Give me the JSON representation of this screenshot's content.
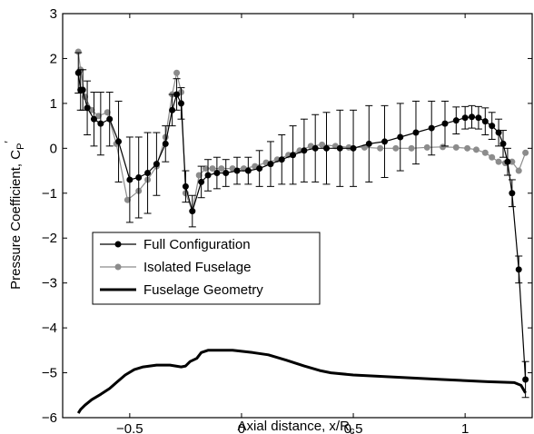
{
  "chart_data": {
    "type": "line",
    "xlabel": "Axial distance, x/R",
    "xlabel_sub": "c",
    "ylabel": "Pressure Coefficient, C",
    "ylabel_sub": "P",
    "ylabel_sup": "′",
    "xlim": [
      -0.8,
      1.3
    ],
    "ylim": [
      -6,
      3
    ],
    "xticks": [
      -0.5,
      0,
      0.5,
      1
    ],
    "xtick_labels": [
      "−0.5",
      "0",
      "0.5",
      "1"
    ],
    "yticks": [
      -6,
      -5,
      -4,
      -3,
      -2,
      -1,
      0,
      1,
      2,
      3
    ],
    "ytick_labels": [
      "−6",
      "−5",
      "−4",
      "−3",
      "−2",
      "−1",
      "0",
      "1",
      "2",
      "3"
    ],
    "grid": false,
    "legend_position": "lower-left",
    "series": [
      {
        "name": "Full Configuration",
        "color": "#000000",
        "marker": "circle",
        "points": [
          [
            -0.73,
            1.68
          ],
          [
            -0.72,
            1.3
          ],
          [
            -0.71,
            1.3
          ],
          [
            -0.69,
            0.9
          ],
          [
            -0.66,
            0.65
          ],
          [
            -0.63,
            0.55
          ],
          [
            -0.59,
            0.65
          ],
          [
            -0.55,
            0.15
          ],
          [
            -0.5,
            -0.7
          ],
          [
            -0.46,
            -0.65
          ],
          [
            -0.42,
            -0.55
          ],
          [
            -0.38,
            -0.35
          ],
          [
            -0.34,
            0.1
          ],
          [
            -0.31,
            0.85
          ],
          [
            -0.29,
            1.2
          ],
          [
            -0.27,
            1.0
          ],
          [
            -0.25,
            -0.85
          ],
          [
            -0.22,
            -1.4
          ],
          [
            -0.18,
            -0.75
          ],
          [
            -0.15,
            -0.6
          ],
          [
            -0.11,
            -0.55
          ],
          [
            -0.07,
            -0.55
          ],
          [
            -0.02,
            -0.5
          ],
          [
            0.03,
            -0.5
          ],
          [
            0.08,
            -0.45
          ],
          [
            0.13,
            -0.35
          ],
          [
            0.18,
            -0.25
          ],
          [
            0.23,
            -0.15
          ],
          [
            0.28,
            -0.05
          ],
          [
            0.33,
            0.0
          ],
          [
            0.38,
            0.0
          ],
          [
            0.44,
            0.0
          ],
          [
            0.5,
            0.0
          ],
          [
            0.57,
            0.1
          ],
          [
            0.64,
            0.15
          ],
          [
            0.71,
            0.25
          ],
          [
            0.78,
            0.35
          ],
          [
            0.85,
            0.45
          ],
          [
            0.91,
            0.55
          ],
          [
            0.96,
            0.62
          ],
          [
            1.0,
            0.68
          ],
          [
            1.03,
            0.7
          ],
          [
            1.06,
            0.68
          ],
          [
            1.09,
            0.6
          ],
          [
            1.12,
            0.5
          ],
          [
            1.15,
            0.35
          ],
          [
            1.17,
            0.1
          ],
          [
            1.19,
            -0.3
          ],
          [
            1.21,
            -1.0
          ],
          [
            1.24,
            -2.7
          ],
          [
            1.27,
            -5.15
          ]
        ],
        "errors": [
          0.45,
          0.45,
          0.45,
          0.6,
          0.6,
          0.7,
          0.6,
          0.9,
          0.95,
          0.9,
          0.9,
          0.7,
          0.4,
          0.35,
          0.35,
          0.35,
          0.35,
          0.35,
          0.35,
          0.35,
          0.35,
          0.3,
          0.3,
          0.3,
          0.4,
          0.5,
          0.55,
          0.65,
          0.7,
          0.75,
          0.8,
          0.85,
          0.85,
          0.85,
          0.8,
          0.75,
          0.7,
          0.6,
          0.5,
          0.3,
          0.25,
          0.25,
          0.25,
          0.3,
          0.3,
          0.3,
          0.3,
          0.3,
          0.3,
          0.3,
          0.4
        ]
      },
      {
        "name": "Isolated Fuselage",
        "color": "#8c8c8c",
        "marker": "circle",
        "points": [
          [
            -0.73,
            2.15
          ],
          [
            -0.72,
            1.75
          ],
          [
            -0.7,
            1.15
          ],
          [
            -0.67,
            0.85
          ],
          [
            -0.64,
            0.72
          ],
          [
            -0.6,
            0.8
          ],
          [
            -0.56,
            0.1
          ],
          [
            -0.51,
            -1.15
          ],
          [
            -0.46,
            -0.95
          ],
          [
            -0.42,
            -0.7
          ],
          [
            -0.38,
            -0.4
          ],
          [
            -0.34,
            0.25
          ],
          [
            -0.31,
            1.2
          ],
          [
            -0.29,
            1.68
          ],
          [
            -0.27,
            1.25
          ],
          [
            -0.25,
            -1.0
          ],
          [
            -0.22,
            -1.4
          ],
          [
            -0.19,
            -0.6
          ],
          [
            -0.16,
            -0.45
          ],
          [
            -0.13,
            -0.45
          ],
          [
            -0.09,
            -0.45
          ],
          [
            -0.04,
            -0.45
          ],
          [
            0.01,
            -0.45
          ],
          [
            0.06,
            -0.4
          ],
          [
            0.11,
            -0.32
          ],
          [
            0.16,
            -0.25
          ],
          [
            0.21,
            -0.15
          ],
          [
            0.26,
            -0.05
          ],
          [
            0.31,
            0.05
          ],
          [
            0.36,
            0.08
          ],
          [
            0.42,
            0.05
          ],
          [
            0.48,
            0.02
          ],
          [
            0.55,
            0.02
          ],
          [
            0.62,
            0.0
          ],
          [
            0.69,
            0.0
          ],
          [
            0.76,
            0.0
          ],
          [
            0.83,
            0.02
          ],
          [
            0.9,
            0.03
          ],
          [
            0.96,
            0.02
          ],
          [
            1.01,
            0.0
          ],
          [
            1.05,
            -0.03
          ],
          [
            1.09,
            -0.1
          ],
          [
            1.12,
            -0.2
          ],
          [
            1.15,
            -0.3
          ],
          [
            1.18,
            -0.33
          ],
          [
            1.21,
            -0.3
          ],
          [
            1.24,
            -0.5
          ],
          [
            1.27,
            -0.1
          ]
        ]
      },
      {
        "name": "Fuselage Geometry",
        "color": "#000000",
        "marker": "none",
        "points": [
          [
            -0.73,
            -5.9
          ],
          [
            -0.72,
            -5.82
          ],
          [
            -0.7,
            -5.72
          ],
          [
            -0.67,
            -5.6
          ],
          [
            -0.63,
            -5.48
          ],
          [
            -0.59,
            -5.35
          ],
          [
            -0.56,
            -5.22
          ],
          [
            -0.52,
            -5.05
          ],
          [
            -0.48,
            -4.93
          ],
          [
            -0.44,
            -4.87
          ],
          [
            -0.38,
            -4.83
          ],
          [
            -0.32,
            -4.83
          ],
          [
            -0.27,
            -4.87
          ],
          [
            -0.25,
            -4.85
          ],
          [
            -0.23,
            -4.75
          ],
          [
            -0.2,
            -4.68
          ],
          [
            -0.18,
            -4.55
          ],
          [
            -0.15,
            -4.5
          ],
          [
            -0.1,
            -4.5
          ],
          [
            -0.04,
            -4.5
          ],
          [
            0.05,
            -4.55
          ],
          [
            0.12,
            -4.6
          ],
          [
            0.2,
            -4.72
          ],
          [
            0.28,
            -4.85
          ],
          [
            0.35,
            -4.95
          ],
          [
            0.4,
            -5.0
          ],
          [
            0.5,
            -5.05
          ],
          [
            0.7,
            -5.1
          ],
          [
            0.9,
            -5.15
          ],
          [
            1.1,
            -5.2
          ],
          [
            1.22,
            -5.22
          ],
          [
            1.25,
            -5.28
          ],
          [
            1.27,
            -5.45
          ]
        ]
      }
    ]
  }
}
